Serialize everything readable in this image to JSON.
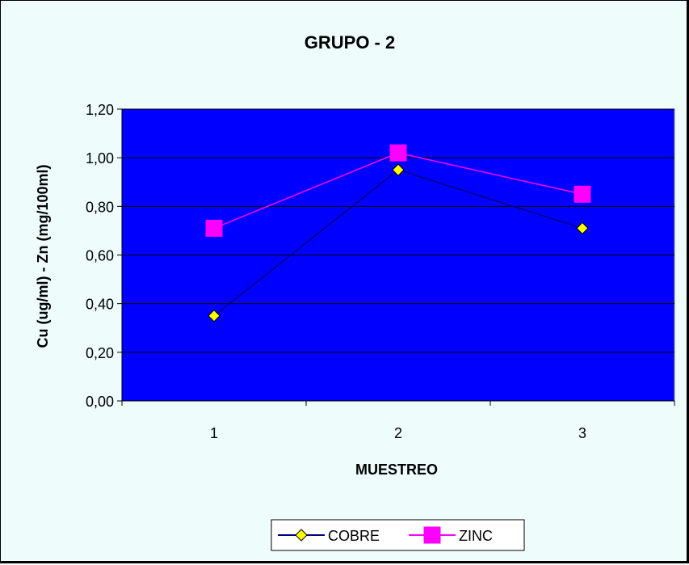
{
  "chart_data": {
    "type": "line",
    "title": "GRUPO - 2",
    "xlabel": "MUESTREO",
    "ylabel": "Cu (ug/ml) - Zn (mg/100ml)",
    "categories": [
      "1",
      "2",
      "3"
    ],
    "ylim": [
      0,
      1.2
    ],
    "yticks": [
      "0,00",
      "0,20",
      "0,40",
      "0,60",
      "0,80",
      "1,00",
      "1,20"
    ],
    "grid": true,
    "legend_position": "bottom",
    "plot_background": "#0000ff",
    "series": [
      {
        "name": "COBRE",
        "values": [
          0.35,
          0.95,
          0.71
        ],
        "color": "#000080",
        "marker": "diamond",
        "marker_fill": "#ffff00"
      },
      {
        "name": "ZINC",
        "values": [
          0.71,
          1.02,
          0.85
        ],
        "color": "#ff00ff",
        "marker": "square",
        "marker_fill": "#ff00ff"
      }
    ]
  }
}
